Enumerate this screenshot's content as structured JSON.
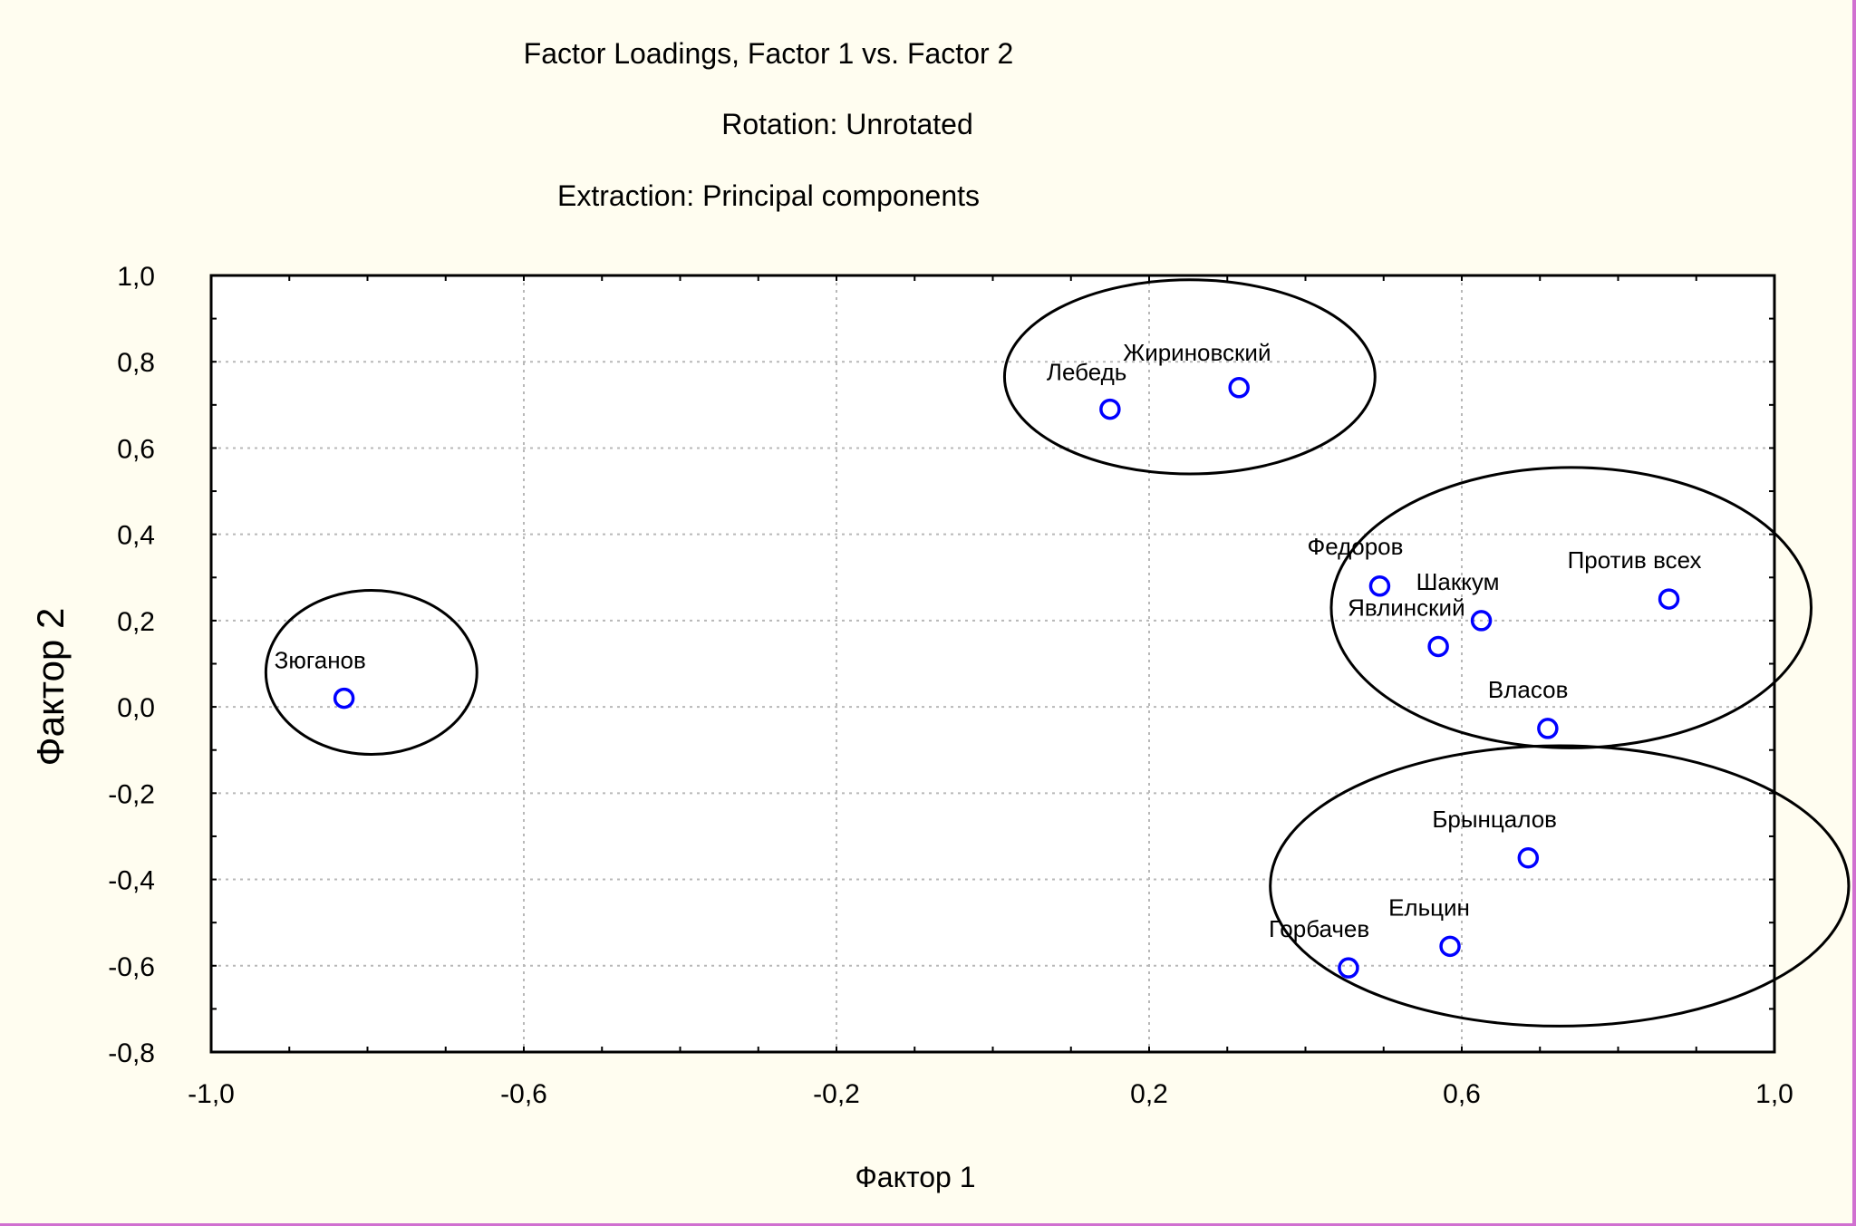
{
  "chart_data": {
    "type": "scatter",
    "title": "Factor Loadings, Factor 1 vs. Factor 2",
    "subtitle_lines": [
      "Rotation: Unrotated",
      "Extraction: Principal components"
    ],
    "xlabel": "Фактор 1",
    "ylabel": "Фактор 2",
    "xlim": [
      -1.0,
      1.0
    ],
    "ylim": [
      -0.8,
      1.0
    ],
    "xticks": [
      -1.0,
      -0.6,
      -0.2,
      0.2,
      0.6,
      1.0
    ],
    "xtick_labels": [
      "-1,0",
      "-0,6",
      "-0,2",
      "0,2",
      "0,6",
      "1,0"
    ],
    "yticks": [
      1.0,
      0.8,
      0.6,
      0.4,
      0.2,
      0.0,
      -0.2,
      -0.4,
      -0.6,
      -0.8
    ],
    "ytick_labels": [
      "1,0",
      "0,8",
      "0,6",
      "0,4",
      "0,2",
      "0,0",
      "-0,2",
      "-0,4",
      "-0,6",
      "-0,8"
    ],
    "grid": true,
    "marker": "open-circle",
    "marker_color": "#0000ff",
    "points": [
      {
        "label": "Зюганов",
        "x": -0.83,
        "y": 0.02
      },
      {
        "label": "Лебедь",
        "x": 0.15,
        "y": 0.69
      },
      {
        "label": "Жириновский",
        "x": 0.315,
        "y": 0.74
      },
      {
        "label": "Федоров",
        "x": 0.495,
        "y": 0.28
      },
      {
        "label": "Шаккум",
        "x": 0.625,
        "y": 0.2
      },
      {
        "label": "Явлинский",
        "x": 0.57,
        "y": 0.14
      },
      {
        "label": "Против всех",
        "x": 0.865,
        "y": 0.25
      },
      {
        "label": "Власов",
        "x": 0.71,
        "y": -0.05
      },
      {
        "label": "Брынцалов",
        "x": 0.685,
        "y": -0.35
      },
      {
        "label": "Ельцин",
        "x": 0.585,
        "y": -0.555
      },
      {
        "label": "Горбачев",
        "x": 0.455,
        "y": -0.605
      }
    ],
    "cluster_ellipses": [
      {
        "cx": -0.795,
        "cy": 0.08,
        "rx": 0.135,
        "ry": 0.19
      },
      {
        "cx": 0.252,
        "cy": 0.765,
        "rx": 0.237,
        "ry": 0.225
      },
      {
        "cx": 0.74,
        "cy": 0.23,
        "rx": 0.307,
        "ry": 0.325
      },
      {
        "cx": 0.725,
        "cy": -0.415,
        "rx": 0.37,
        "ry": 0.325
      }
    ]
  }
}
